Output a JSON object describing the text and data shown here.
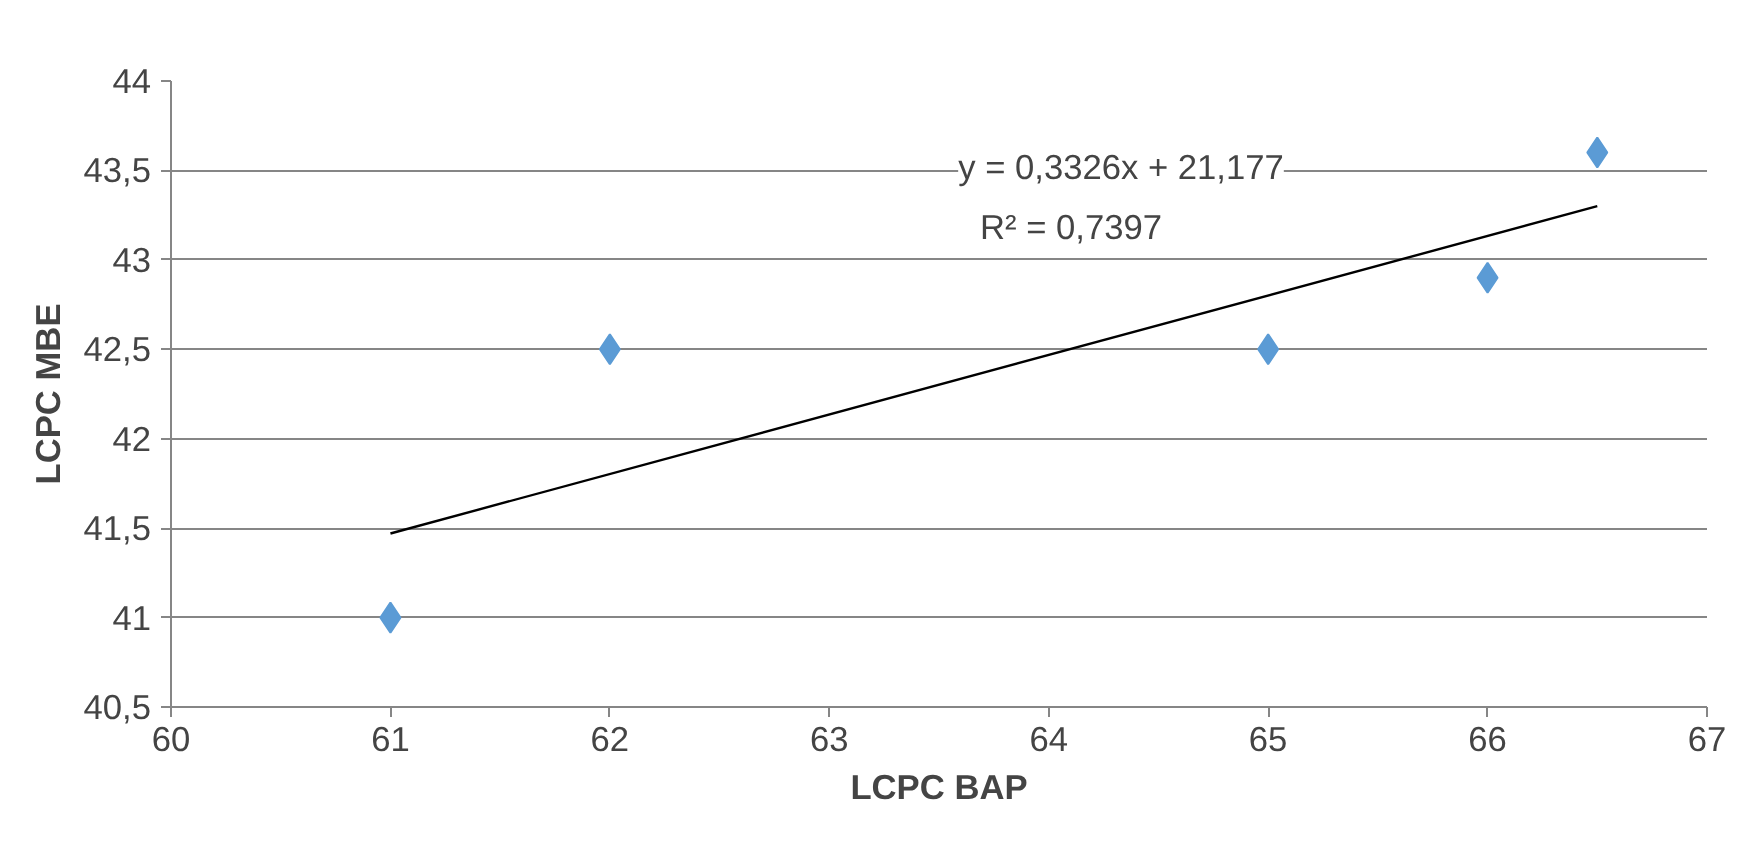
{
  "chart_data": {
    "type": "scatter",
    "xlabel": "LCPC BAP",
    "ylabel": "LCPC MBE",
    "series": [
      {
        "color": "#5b9bd5",
        "marker": "diamond",
        "x": [
          61,
          62,
          65,
          66,
          66.5
        ],
        "values": [
          41,
          42.5,
          42.5,
          42.9,
          43.6
        ]
      },
      {
        "type": "line",
        "color": "#000000",
        "marker": "none",
        "line_style": "solid",
        "x": [
          61,
          66.5
        ],
        "values": [
          41.47,
          43.3
        ]
      }
    ],
    "xlim": [
      60,
      67
    ],
    "xticks": [
      60,
      61,
      62,
      63,
      64,
      65,
      66,
      67
    ],
    "ylim": [
      40.5,
      44
    ],
    "yticks": [
      {
        "value": 40.5,
        "label": "40,5"
      },
      41,
      {
        "value": 41.5,
        "label": "41,5"
      },
      42,
      {
        "value": 42.5,
        "label": "42,5"
      },
      43,
      {
        "value": 43.5,
        "label": "43,5"
      },
      44
    ],
    "grid": "y",
    "annotations": [
      "y = 0,3326x + 21,177",
      "R² = 0,7397"
    ]
  }
}
